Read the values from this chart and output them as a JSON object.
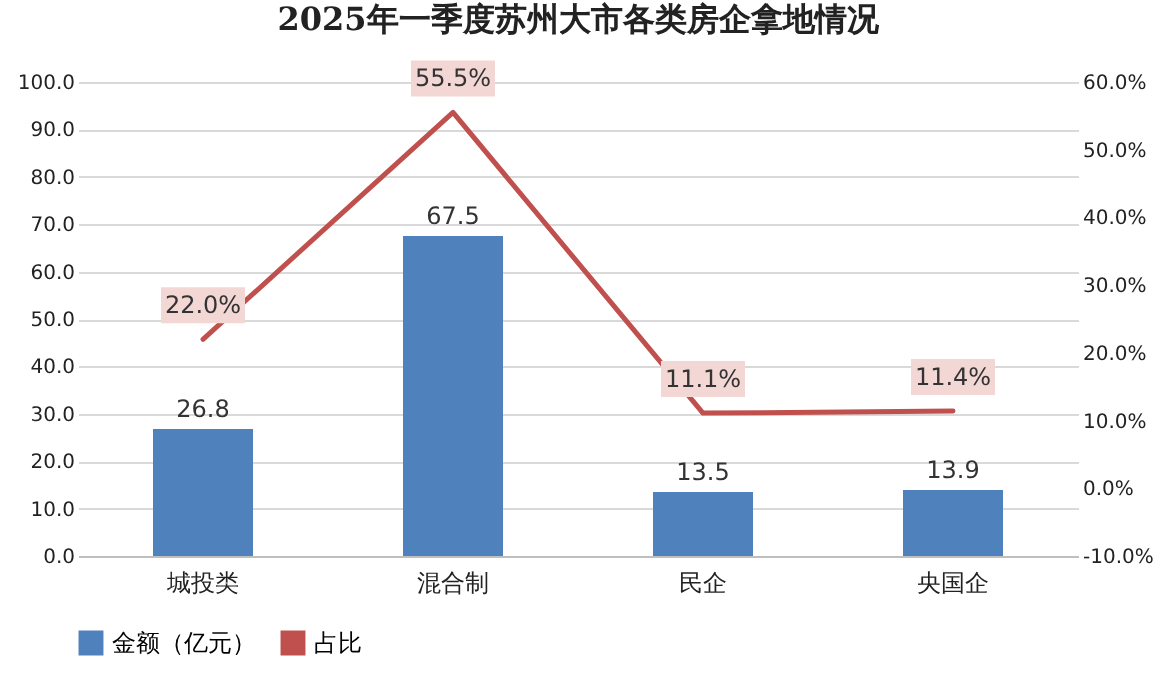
{
  "chart_data": {
    "type": "bar",
    "title": "2025年一季度苏州大市各类房企拿地情况",
    "categories": [
      "城投类",
      "混合制",
      "民企",
      "央国企"
    ],
    "series": [
      {
        "name": "金额（亿元）",
        "color": "#4f81bd",
        "values": [
          26.8,
          67.5,
          13.5,
          13.9
        ],
        "value_labels": [
          "26.8",
          "67.5",
          "13.5",
          "13.9"
        ]
      },
      {
        "name": "占比",
        "type": "line",
        "axis": "y2",
        "color": "#c0504d",
        "values": [
          22.0,
          55.5,
          11.1,
          11.4
        ],
        "value_labels": [
          "22.0%",
          "55.5%",
          "11.1%",
          "11.4%"
        ]
      }
    ],
    "ylim": [
      0,
      100
    ],
    "yticks": [
      {
        "value": 0,
        "label": "0.0"
      },
      {
        "value": 10,
        "label": "10.0"
      },
      {
        "value": 20,
        "label": "20.0"
      },
      {
        "value": 30,
        "label": "30.0"
      },
      {
        "value": 40,
        "label": "40.0"
      },
      {
        "value": 50,
        "label": "50.0"
      },
      {
        "value": 60,
        "label": "60.0"
      },
      {
        "value": 70,
        "label": "70.0"
      },
      {
        "value": 80,
        "label": "80.0"
      },
      {
        "value": 90,
        "label": "90.0"
      },
      {
        "value": 100,
        "label": "100.0"
      }
    ],
    "y2lim": [
      -10,
      60
    ],
    "y2ticks": [
      {
        "value": -10,
        "label": "-10.0%"
      },
      {
        "value": 0,
        "label": "0.0%"
      },
      {
        "value": 10,
        "label": "10.0%"
      },
      {
        "value": 20,
        "label": "20.0%"
      },
      {
        "value": 30,
        "label": "30.0%"
      },
      {
        "value": 40,
        "label": "40.0%"
      },
      {
        "value": 50,
        "label": "50.0%"
      },
      {
        "value": 60,
        "label": "60.0%"
      }
    ],
    "grid": "y",
    "legend": "bottom"
  }
}
